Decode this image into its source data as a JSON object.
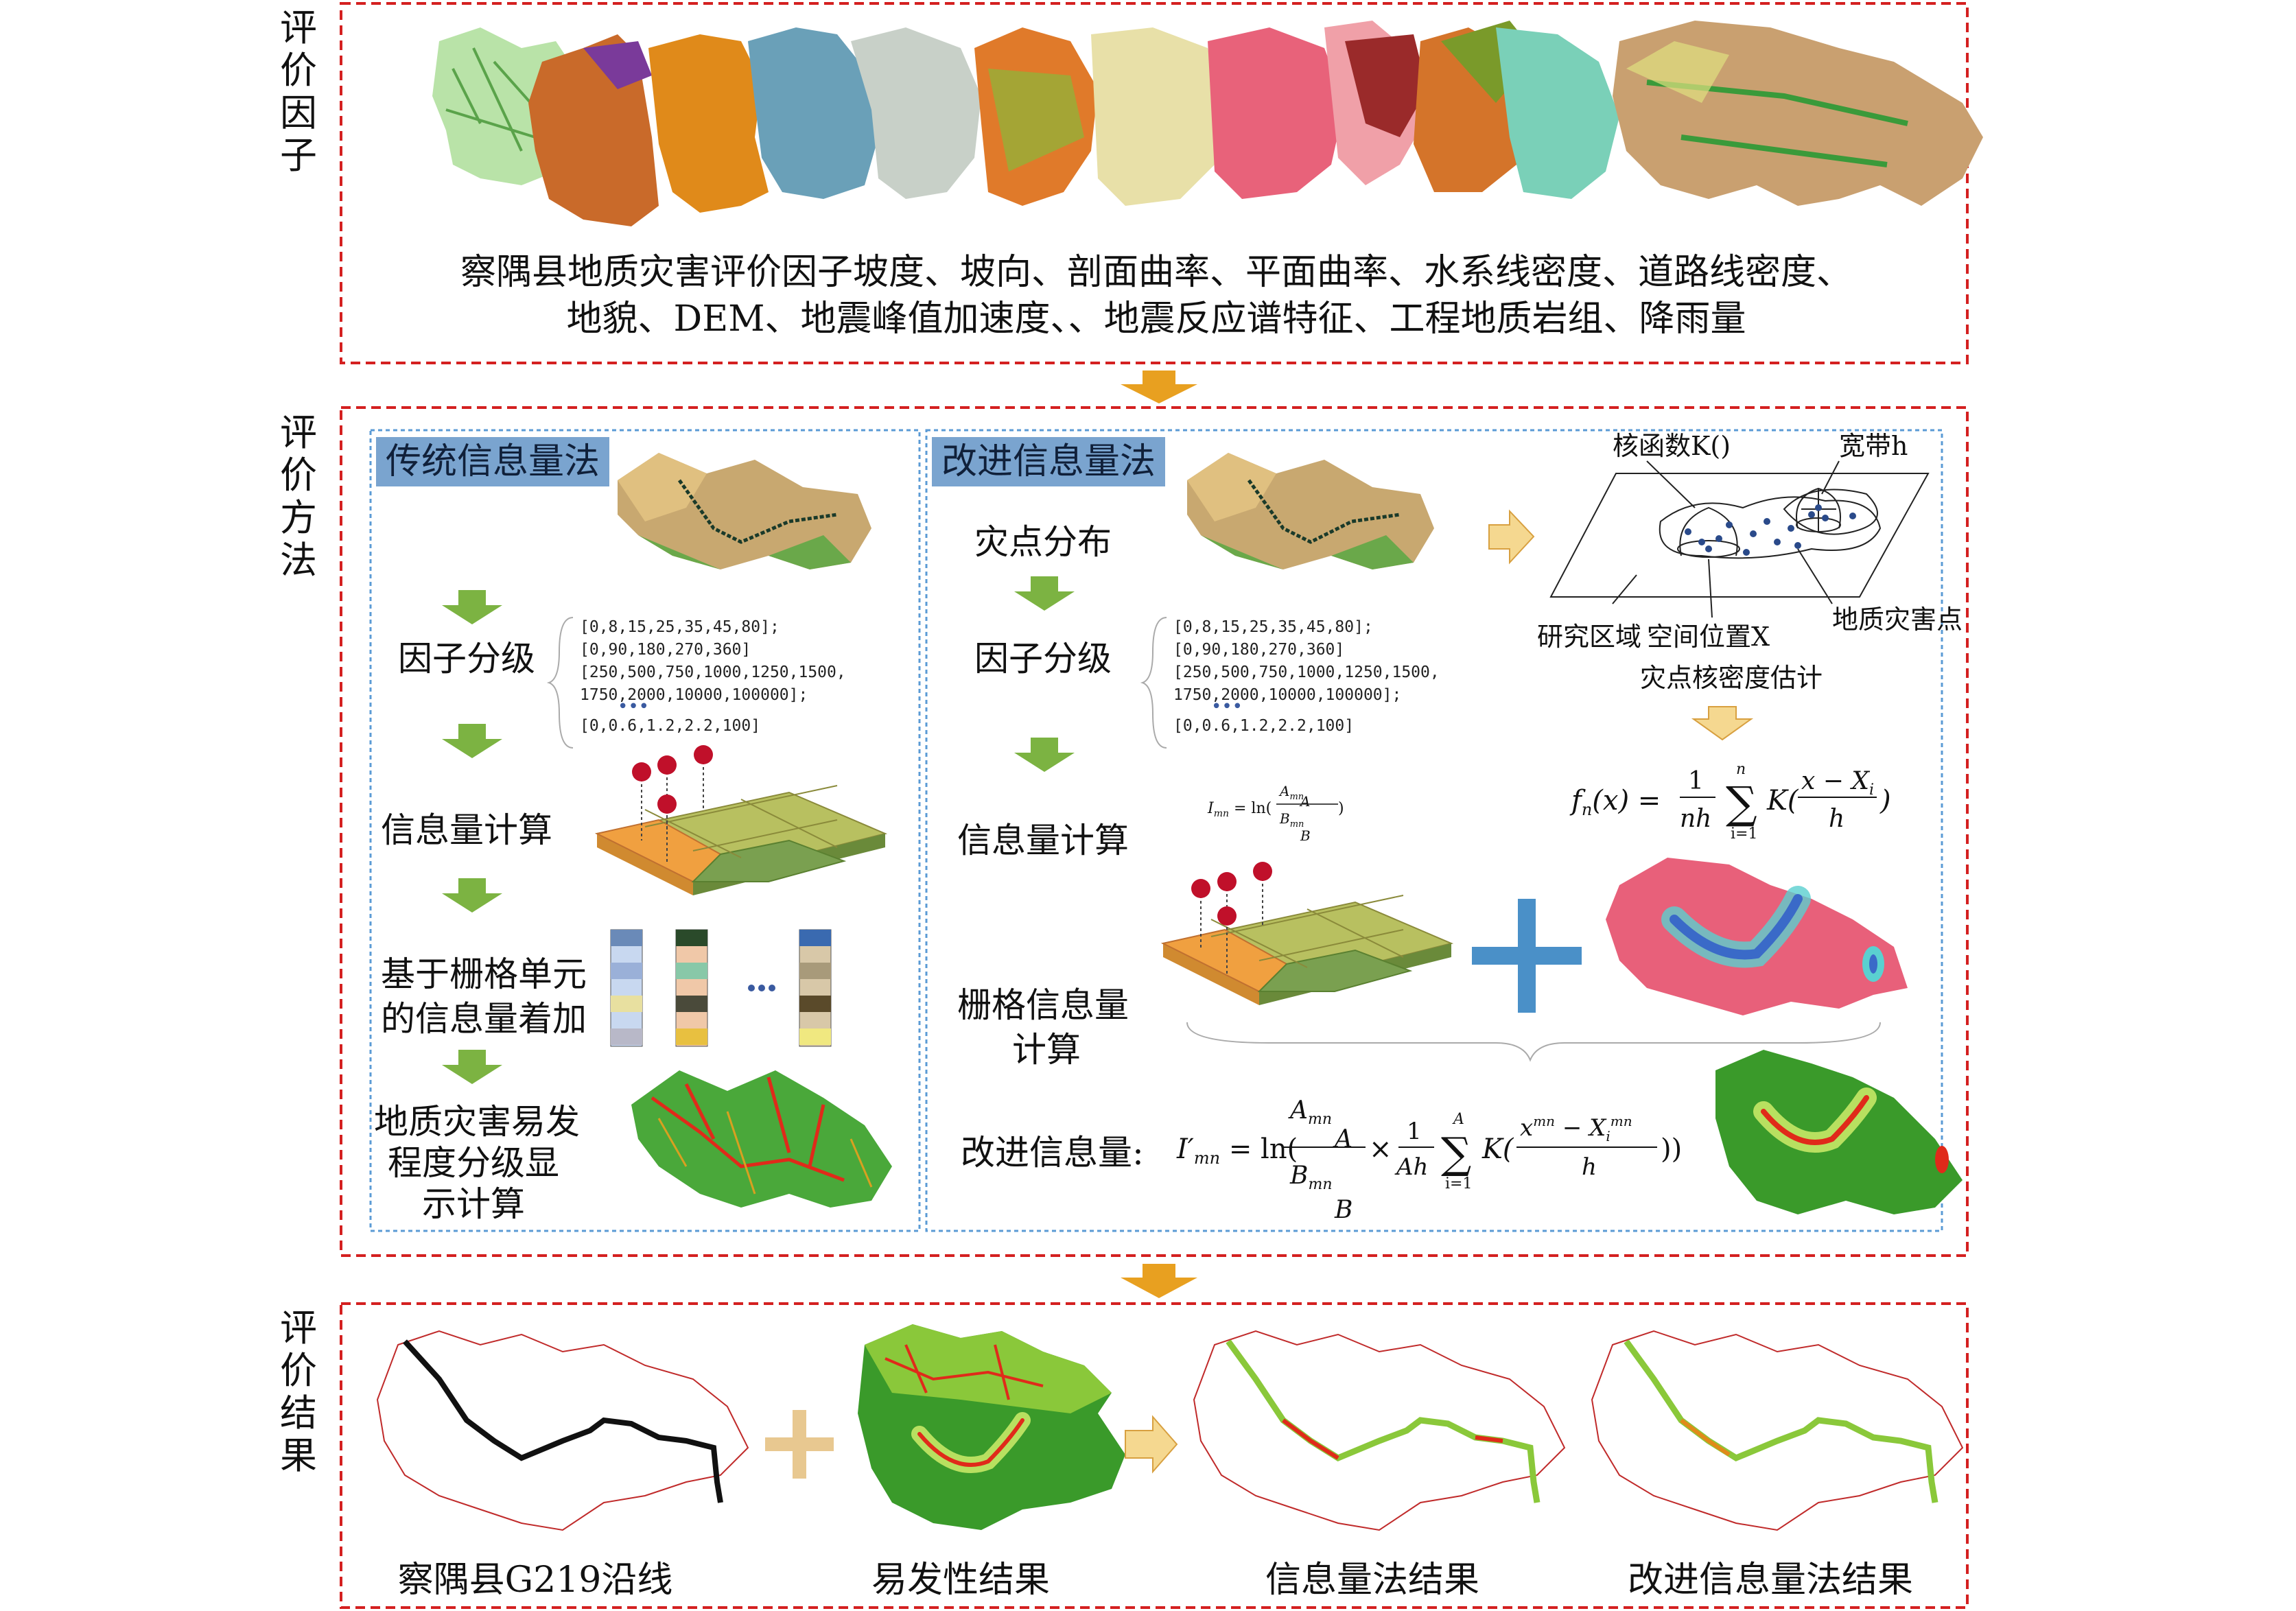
{
  "sections": {
    "factors": {
      "label": "评价因子"
    },
    "methods": {
      "label": "评价方法"
    },
    "results": {
      "label": "评价结果"
    }
  },
  "factors_caption": {
    "line1": "察隅县地质灾害评价因子坡度、坡向、剖面曲率、平面曲率、水系线密度、道路线密度、",
    "line2": "地貌、DEM、地震峰值加速度、、地震反应谱特征、工程地质岩组、降雨量"
  },
  "traditional": {
    "title": "传统信息量法",
    "step1": "因子分级",
    "step2": "信息量计算",
    "step3a": "基于栅格单元",
    "step3b": "的信息量着加",
    "step4a": "地质灾害易发",
    "step4b": "程度分级显",
    "step4c": "示计算",
    "codes": [
      "[0,8,15,25,35,45,80];",
      "[0,90,180,270,360]",
      "[250,500,750,1000,1250,1500,",
      "1750,2000,10000,100000];",
      "[0,0.6,1.2,2.2,100]"
    ],
    "ellipsis": "•••"
  },
  "improved": {
    "title": "改进信息量法",
    "step0": "灾点分布",
    "step1": "因子分级",
    "step2": "信息量计算",
    "step3a": "栅格信息量",
    "step3b": "计算",
    "final_label": "改进信息量:",
    "codes": [
      "[0,8,15,25,35,45,80];",
      "[0,90,180,270,360]",
      "[250,500,750,1000,1250,1500,",
      "1750,2000,10000,100000];",
      "[0,0.6,1.2,2.2,100]"
    ],
    "kde": {
      "kernel": "核函数K()",
      "bandwidth": "宽带h",
      "region": "研究区域",
      "position": "空间位置X",
      "point": "地质灾害点",
      "caption": "灾点核密度估计"
    }
  },
  "results_labels": {
    "r1": "察隅县G219沿线",
    "r2": "易发性结果",
    "r3": "信息量法结果",
    "r4": "改进信息量法结果"
  },
  "colors": {
    "frame": "#d42020",
    "inner_frame": "#5b9bd5",
    "arrow_orange": "#e8a020",
    "arrow_green": "#7cb342",
    "plus_blue": "#4a90c8",
    "plus_tan": "#e8c890"
  }
}
